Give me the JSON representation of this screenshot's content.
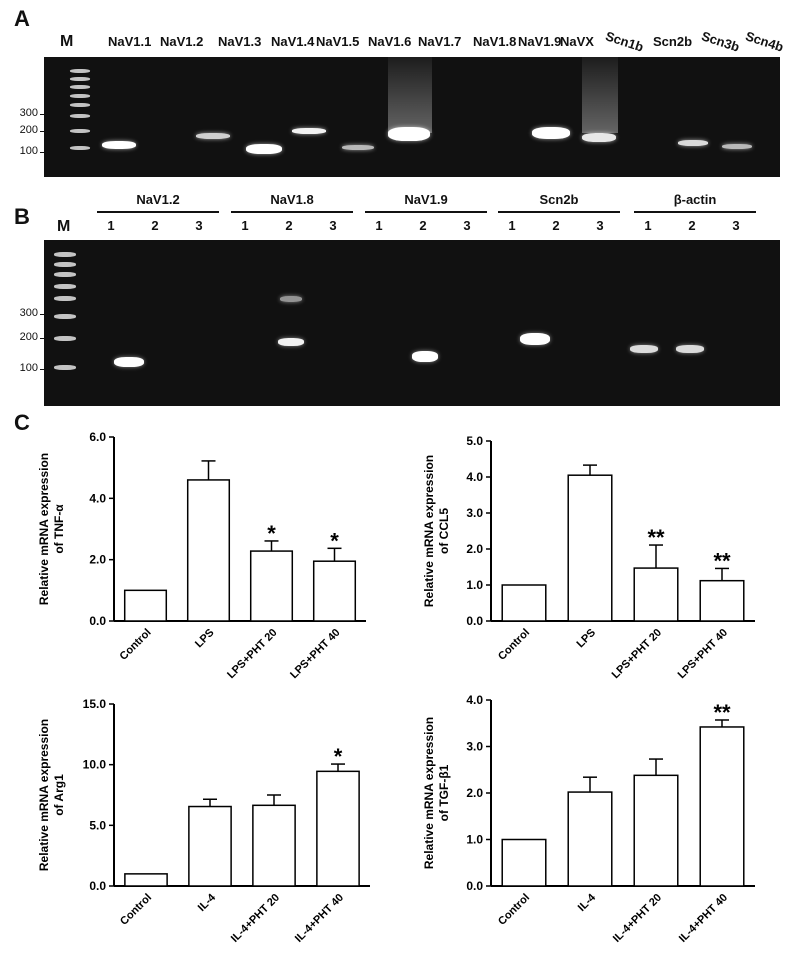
{
  "panel_letters": {
    "a": "A",
    "b": "B",
    "c": "C"
  },
  "gel_a": {
    "marker_label": "M",
    "ladder_labels": [
      "300",
      "200",
      "100"
    ],
    "lanes": [
      "NaV1.1",
      "NaV1.2",
      "NaV1.3",
      "NaV1.4",
      "NaV1.5",
      "NaV1.6",
      "NaV1.7",
      "NaV1.8",
      "NaV1.9",
      "NaVX",
      "Scn1b",
      "Scn2b",
      "Scn3b",
      "Scn4b"
    ]
  },
  "gel_b": {
    "marker_label": "M",
    "ladder_labels": [
      "300",
      "200",
      "100"
    ],
    "groups": [
      {
        "name": "NaV1.2",
        "lanes": [
          "1",
          "2",
          "3"
        ]
      },
      {
        "name": "NaV1.8",
        "lanes": [
          "1",
          "2",
          "3"
        ]
      },
      {
        "name": "NaV1.9",
        "lanes": [
          "1",
          "2",
          "3"
        ]
      },
      {
        "name": "Scn2b",
        "lanes": [
          "1",
          "2",
          "3"
        ]
      },
      {
        "name": "β-actin",
        "lanes": [
          "1",
          "2",
          "3"
        ]
      }
    ]
  },
  "chart_data": [
    {
      "type": "bar",
      "ylabel": "Relative mRNA expression of TNF-α",
      "categories": [
        "Control",
        "LPS",
        "LPS+PHT 20",
        "LPS+PHT 40"
      ],
      "values": [
        1.0,
        4.6,
        2.28,
        1.95
      ],
      "errors": [
        0,
        0.62,
        0.33,
        0.42
      ],
      "significance": [
        "",
        "",
        "*",
        "*"
      ],
      "ylim": [
        0,
        6
      ],
      "yticks": [
        "0.0",
        "2.0",
        "4.0",
        "6.0"
      ]
    },
    {
      "type": "bar",
      "ylabel": "Relative mRNA expression of CCL5",
      "categories": [
        "Control",
        "LPS",
        "LPS+PHT 20",
        "LPS+PHT 40"
      ],
      "values": [
        1.0,
        4.05,
        1.47,
        1.12
      ],
      "errors": [
        0,
        0.28,
        0.64,
        0.34
      ],
      "significance": [
        "",
        "",
        "**",
        "**"
      ],
      "ylim": [
        0,
        5
      ],
      "yticks": [
        "0.0",
        "1.0",
        "2.0",
        "3.0",
        "4.0",
        "5.0"
      ]
    },
    {
      "type": "bar",
      "ylabel": "Relative mRNA expression of Arg1",
      "categories": [
        "Control",
        "IL-4",
        "IL-4+PHT 20",
        "IL-4+PHT 40"
      ],
      "values": [
        1.0,
        6.55,
        6.65,
        9.45
      ],
      "errors": [
        0,
        0.6,
        0.85,
        0.6
      ],
      "significance": [
        "",
        "",
        "",
        "*"
      ],
      "ylim": [
        0,
        15
      ],
      "yticks": [
        "0.0",
        "5.0",
        "10.0",
        "15.0"
      ]
    },
    {
      "type": "bar",
      "ylabel": "Relative mRNA expression of TGF-β1",
      "categories": [
        "Control",
        "IL-4",
        "IL-4+PHT 20",
        "IL-4+PHT 40"
      ],
      "values": [
        1.0,
        2.02,
        2.38,
        3.42
      ],
      "errors": [
        0,
        0.32,
        0.35,
        0.15
      ],
      "significance": [
        "",
        "",
        "",
        "**"
      ],
      "ylim": [
        0,
        4
      ],
      "yticks": [
        "0.0",
        "1.0",
        "2.0",
        "3.0",
        "4.0"
      ]
    }
  ]
}
